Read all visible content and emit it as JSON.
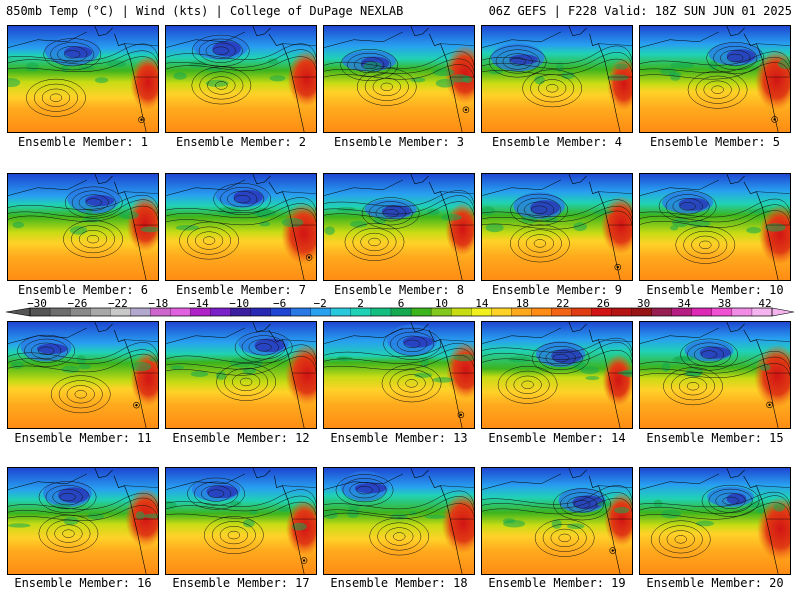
{
  "header": {
    "left": "850mb Temp (°C) | Wind (kts) | College of DuPage NEXLAB",
    "right": "06Z GEFS | F228 Valid: 18Z SUN JUN 01 2025"
  },
  "member_prefix": "Ensemble Member: ",
  "members": [
    {
      "label": "Ensemble Member: 1"
    },
    {
      "label": "Ensemble Member: 2"
    },
    {
      "label": "Ensemble Member: 3"
    },
    {
      "label": "Ensemble Member: 4"
    },
    {
      "label": "Ensemble Member: 5"
    },
    {
      "label": "Ensemble Member: 6"
    },
    {
      "label": "Ensemble Member: 7"
    },
    {
      "label": "Ensemble Member: 8"
    },
    {
      "label": "Ensemble Member: 9"
    },
    {
      "label": "Ensemble Member: 10"
    },
    {
      "label": "Ensemble Member: 11"
    },
    {
      "label": "Ensemble Member: 12"
    },
    {
      "label": "Ensemble Member: 13"
    },
    {
      "label": "Ensemble Member: 14"
    },
    {
      "label": "Ensemble Member: 15"
    },
    {
      "label": "Ensemble Member: 16"
    },
    {
      "label": "Ensemble Member: 17"
    },
    {
      "label": "Ensemble Member: 18"
    },
    {
      "label": "Ensemble Member: 19"
    },
    {
      "label": "Ensemble Member: 20"
    }
  ],
  "colorbar": {
    "ticks": [
      "−30",
      "−26",
      "−22",
      "−18",
      "−14",
      "−10",
      "−6",
      "−2",
      "2",
      "6",
      "10",
      "14",
      "18",
      "22",
      "26",
      "30",
      "34",
      "38",
      "42"
    ],
    "colors": [
      "#555555",
      "#6e6e6e",
      "#8a8a8a",
      "#a8a8a8",
      "#c8c8c8",
      "#b2a8ce",
      "#cc66cc",
      "#e060e0",
      "#b020c8",
      "#7a20c8",
      "#3c1ea0",
      "#2828b4",
      "#1e46d2",
      "#2878e6",
      "#28a0f0",
      "#28c8dc",
      "#20d2b4",
      "#14be82",
      "#14aa50",
      "#3cb41e",
      "#82c81e",
      "#c8dc14",
      "#f0f01e",
      "#ffd228",
      "#ffaa1e",
      "#ff8c14",
      "#f06414",
      "#e03c14",
      "#d21414",
      "#b41414",
      "#961414",
      "#961e50",
      "#b41e82",
      "#dc28b4",
      "#f050d2",
      "#f08ce6",
      "#f5b4f0"
    ]
  }
}
